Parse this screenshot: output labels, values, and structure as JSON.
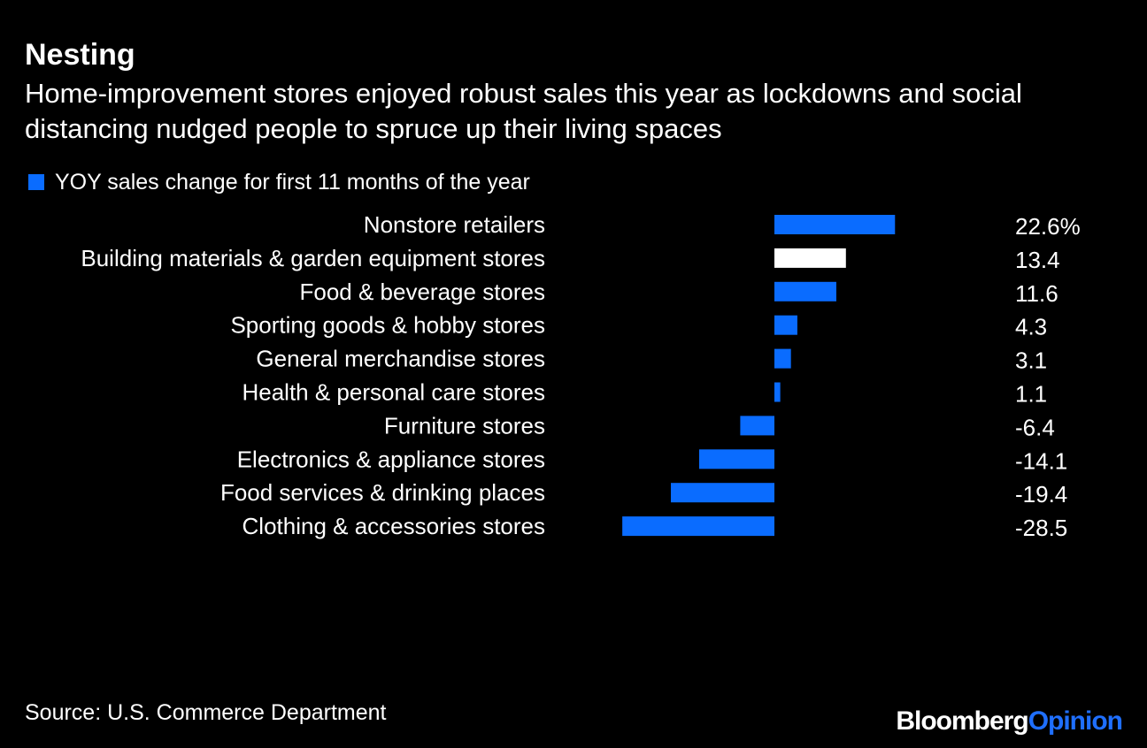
{
  "title": "Nesting",
  "subtitle": "Home-improvement stores enjoyed robust sales this year as lockdowns and social distancing nudged people to spruce up their living spaces",
  "source": "Source: U.S. Commerce Department",
  "logo": {
    "part1": "Bloomberg",
    "part2": "Opinion"
  },
  "colors": {
    "background": "#000000",
    "bar": "#0a6cff",
    "highlight": "#ffffff",
    "text": "#ffffff"
  },
  "chart_data": {
    "type": "bar",
    "orientation": "horizontal",
    "legend": "YOY sales change for first 11 months of the year",
    "legend_position": "top-left",
    "grid": false,
    "xlim": [
      -30,
      25
    ],
    "categories": [
      "Nonstore retailers",
      "Building materials & garden equipment stores",
      "Food & beverage stores",
      "Sporting goods & hobby stores",
      "General merchandise stores",
      "Health & personal care stores",
      "Furniture stores",
      "Electronics & appliance stores",
      "Food services & drinking places",
      "Clothing & accessories stores"
    ],
    "values": [
      22.6,
      13.4,
      11.6,
      4.3,
      3.1,
      1.1,
      -6.4,
      -14.1,
      -19.4,
      -28.5
    ],
    "value_labels": [
      "22.6%",
      "13.4",
      "11.6",
      "4.3",
      "3.1",
      "1.1",
      "-6.4",
      "-14.1",
      "-19.4",
      "-28.5"
    ],
    "highlight_category": "Building materials & garden equipment stores"
  }
}
